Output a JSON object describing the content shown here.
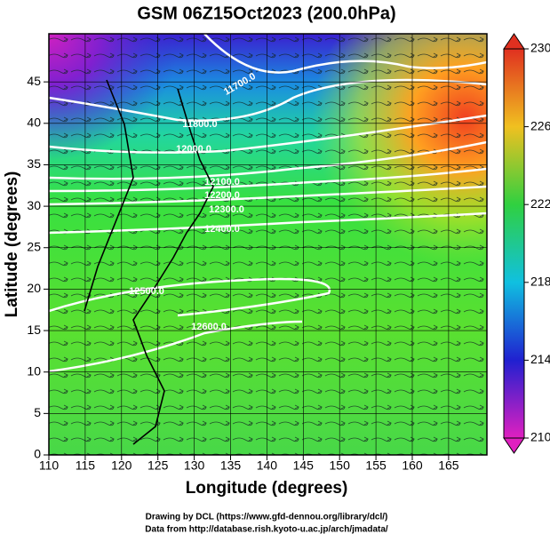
{
  "title": "GSM 06Z15Oct2023 (200.0hPa)",
  "x_axis": {
    "label": "Longitude (degrees)",
    "ticks": [
      110,
      115,
      120,
      125,
      130,
      135,
      140,
      145,
      150,
      155,
      160,
      165
    ]
  },
  "y_axis": {
    "label": "Latitude  (degrees)",
    "ticks": [
      0,
      5,
      10,
      15,
      20,
      25,
      30,
      35,
      40,
      45
    ]
  },
  "colorbar": {
    "ticks": [
      210,
      214,
      218,
      222,
      226,
      230
    ]
  },
  "contour_labels": [
    "11700.0",
    "11800.0",
    "12000.0",
    "12100.0",
    "12200.0",
    "12300.0",
    "12400.0",
    "12500.0",
    "12600.0"
  ],
  "footer": [
    "Drawing by DCL (https://www.gfd-dennou.org/library/dcl/)",
    "Data from http://database.rish.kyoto-u.ac.jp/arch/jmadata/"
  ]
}
